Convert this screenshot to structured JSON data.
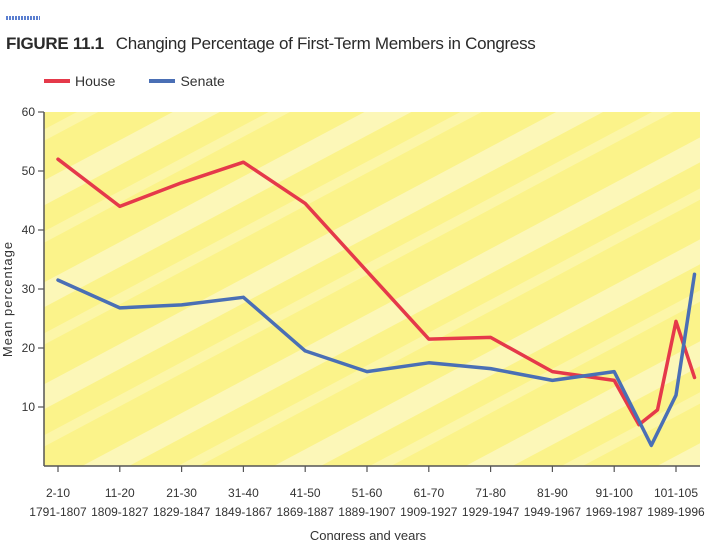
{
  "figure_label": "FIGURE 11.1",
  "colors": {
    "house": "#e5394a",
    "senate": "#4a6fb5",
    "background": "#fbf38a"
  },
  "chart_data": {
    "type": "line",
    "title": "Changing Percentage of First-Term Members in Congress",
    "xlabel": "Congress and years",
    "ylabel": "Mean percentage",
    "ylim": [
      0,
      60
    ],
    "yticks": [
      10,
      20,
      30,
      40,
      50,
      60
    ],
    "categories": [
      {
        "congress": "2-10",
        "years": "1791-1807"
      },
      {
        "congress": "11-20",
        "years": "1809-1827"
      },
      {
        "congress": "21-30",
        "years": "1829-1847"
      },
      {
        "congress": "31-40",
        "years": "1849-1867"
      },
      {
        "congress": "41-50",
        "years": "1869-1887"
      },
      {
        "congress": "51-60",
        "years": "1889-1907"
      },
      {
        "congress": "61-70",
        "years": "1909-1927"
      },
      {
        "congress": "71-80",
        "years": "1929-1947"
      },
      {
        "congress": "81-90",
        "years": "1949-1967"
      },
      {
        "congress": "91-100",
        "years": "1969-1987"
      },
      {
        "congress": "101-105",
        "years": "1989-1996"
      }
    ],
    "legend": [
      "House",
      "Senate"
    ],
    "series": [
      {
        "name": "House",
        "color": "#e5394a",
        "points": [
          [
            0,
            52
          ],
          [
            1,
            44
          ],
          [
            2,
            48
          ],
          [
            3,
            51.5
          ],
          [
            4,
            44.5
          ],
          [
            5,
            33
          ],
          [
            6,
            21.5
          ],
          [
            7,
            21.8
          ],
          [
            8,
            16
          ],
          [
            9,
            14.5
          ],
          [
            9.4,
            7
          ],
          [
            9.7,
            9.5
          ],
          [
            10,
            24.5
          ],
          [
            10.3,
            15
          ]
        ]
      },
      {
        "name": "Senate",
        "color": "#4a6fb5",
        "points": [
          [
            0,
            31.5
          ],
          [
            1,
            26.8
          ],
          [
            2,
            27.3
          ],
          [
            3,
            28.6
          ],
          [
            4,
            19.5
          ],
          [
            5,
            16
          ],
          [
            6,
            17.5
          ],
          [
            7,
            16.5
          ],
          [
            8,
            14.5
          ],
          [
            9,
            16
          ],
          [
            9.6,
            3.5
          ],
          [
            10,
            12
          ],
          [
            10.3,
            32.5
          ]
        ]
      }
    ]
  }
}
